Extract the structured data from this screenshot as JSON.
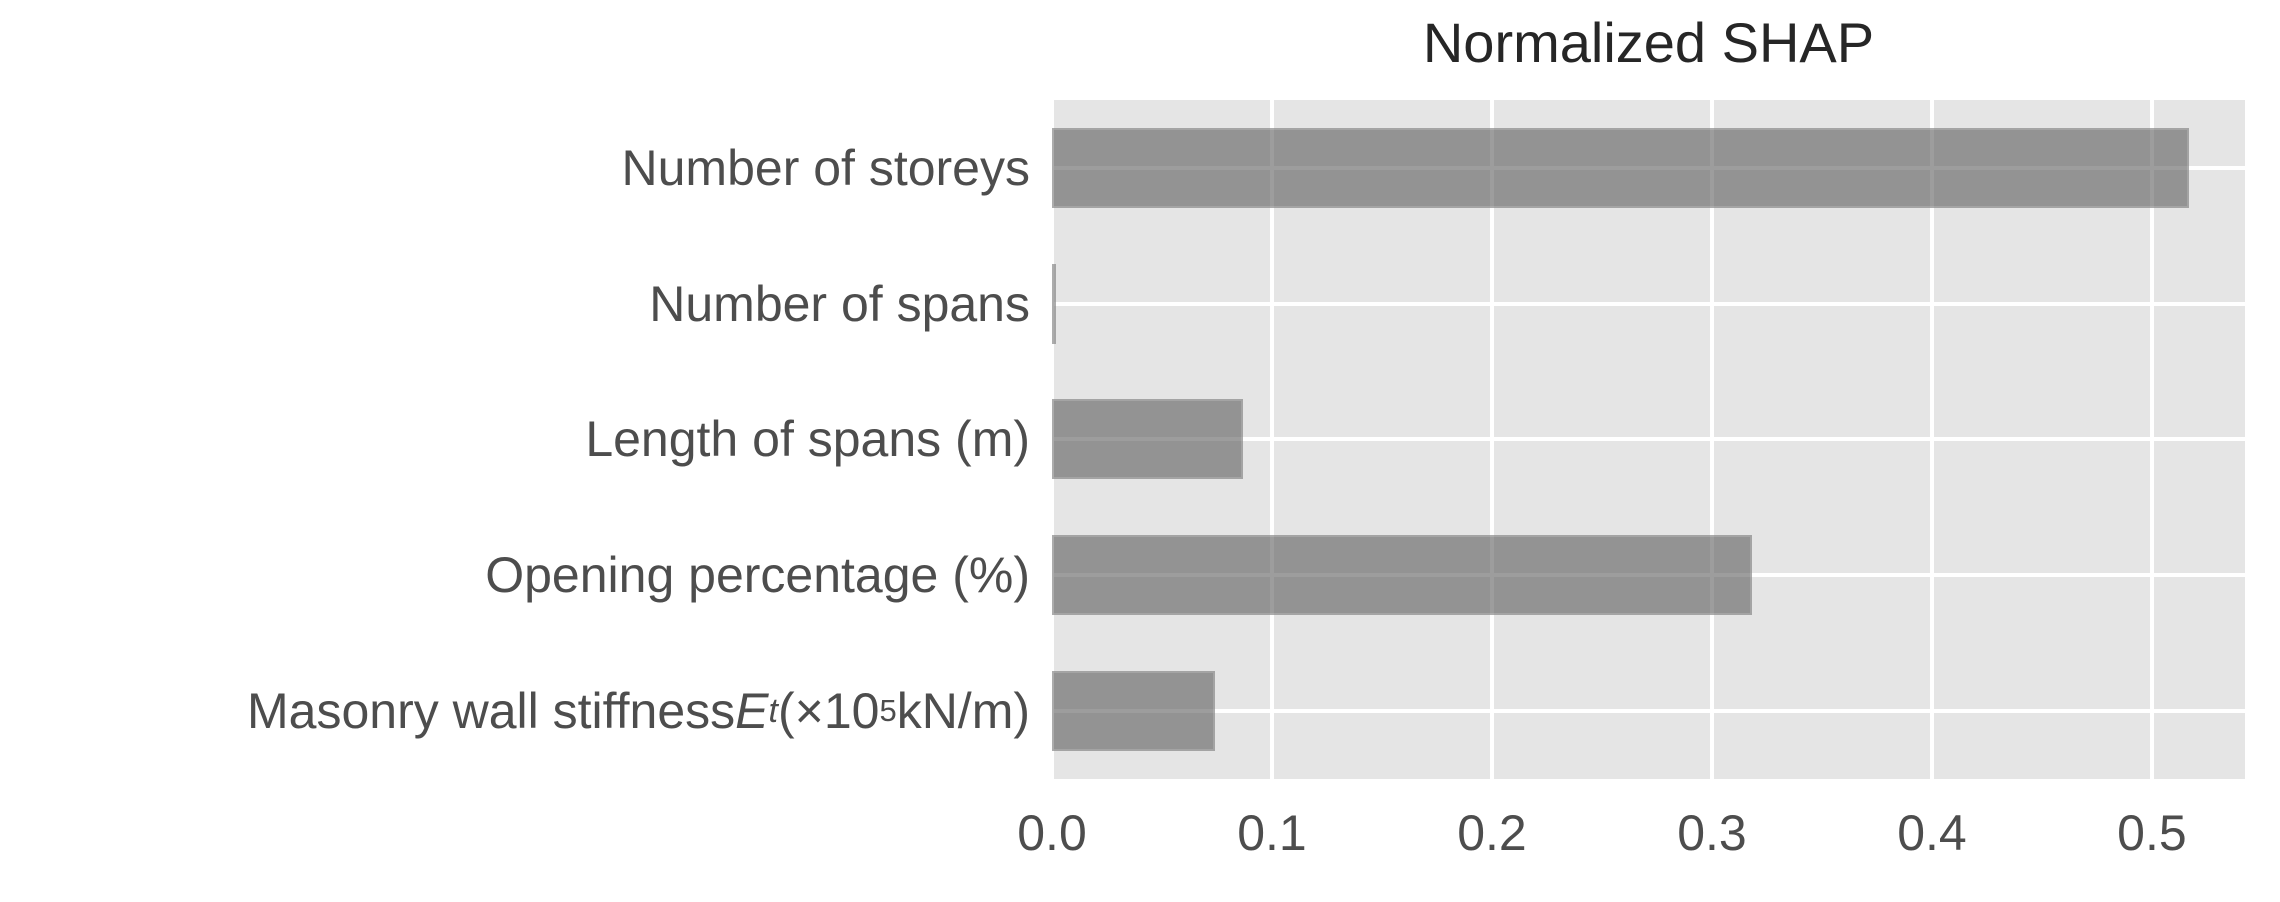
{
  "figure": {
    "title": "Normalized SHAP",
    "colors": {
      "page_bg": "#FFFFFF",
      "plot_bg": "#E5E5E5",
      "gridline": "#FFFFFF",
      "bar_fill_effective": "#969696",
      "bar_fill_rgba": "rgba(100,100,100,0.63)",
      "axis_text": "#4D4D4D",
      "title_text": "#262626"
    }
  },
  "chart_data": {
    "type": "bar",
    "orientation": "horizontal",
    "title": "Normalized SHAP",
    "categories": [
      "Number of storeys",
      "Number of spans",
      "Length of spans (m)",
      "Opening percentage (%)",
      "Masonry wall stiffness Eₜ (×10⁵ kN/m)"
    ],
    "values": [
      0.517,
      0.002,
      0.087,
      0.318,
      0.074
    ],
    "xlabel": "",
    "ylabel": "",
    "xlim": [
      0,
      0.5423
    ],
    "xticks": [
      0.0,
      0.1,
      0.2,
      0.3,
      0.4,
      0.5
    ],
    "xtick_labels": [
      "0.0",
      "0.1",
      "0.2",
      "0.3",
      "0.4",
      "0.5"
    ],
    "grid": true,
    "legend": false,
    "grid_style": "white-on-gray",
    "bar_height_fraction": 0.59
  },
  "masonry_label_parts": {
    "prefix": "Masonry wall stiffness ",
    "var_e": "E",
    "sub_t": "t",
    "mid": " (×10",
    "sup_exp": "5",
    "suffix": " kN/m)"
  }
}
